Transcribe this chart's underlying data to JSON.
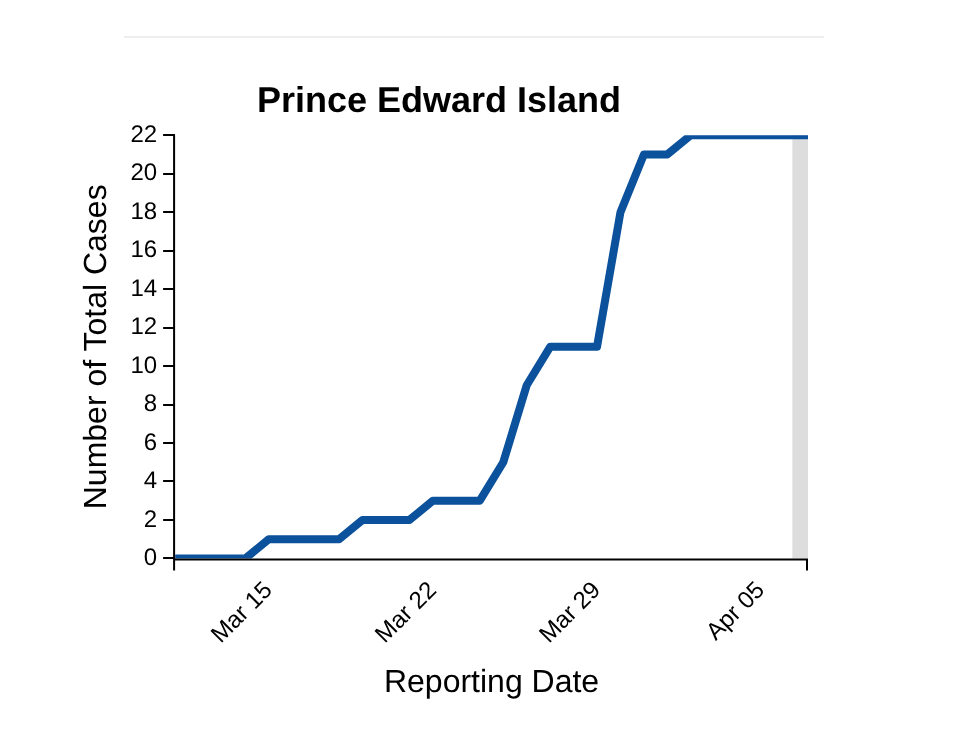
{
  "chart_data": {
    "type": "line",
    "title": "Prince Edward Island",
    "xlabel": "Reporting Date",
    "ylabel": "Number of Total Cases",
    "x": [
      "--03-11",
      "--03-12",
      "--03-13",
      "--03-14",
      "--03-15",
      "--03-16",
      "--03-17",
      "--03-18",
      "--03-19",
      "--03-20",
      "--03-21",
      "--03-22",
      "--03-23",
      "--03-24",
      "--03-25",
      "--03-26",
      "--03-27",
      "--03-28",
      "--03-29",
      "--03-30",
      "--03-31",
      "--04-01",
      "--04-02",
      "--04-03",
      "--04-04",
      "--04-05",
      "--04-06",
      "--04-07"
    ],
    "series": [
      {
        "color": "#0b519b",
        "values": [
          0,
          0,
          0,
          0,
          1,
          1,
          1,
          1,
          2,
          2,
          2,
          3,
          3,
          3,
          5,
          9,
          11,
          11,
          11,
          18,
          21,
          21,
          22,
          22,
          22,
          22,
          22,
          22
        ]
      }
    ],
    "xlim": [
      "--03-11",
      "--04-07"
    ],
    "xticks": [
      {
        "value": "--03-15",
        "label": "Mar 15"
      },
      {
        "value": "--03-22",
        "label": "Mar 22"
      },
      {
        "value": "--03-29",
        "label": "Mar 29"
      },
      {
        "value": "--04-05",
        "label": "Apr 05"
      }
    ],
    "ylim": [
      0,
      22
    ],
    "yticks": [
      0,
      2,
      4,
      6,
      8,
      10,
      12,
      14,
      16,
      18,
      20,
      22
    ],
    "bands": [
      {
        "axis": "x",
        "from": "--04-06T08:00",
        "to": "--04-07",
        "color": "#dddddd"
      }
    ],
    "grid": false,
    "legend": false,
    "marker": "none",
    "line_style": "solid"
  }
}
